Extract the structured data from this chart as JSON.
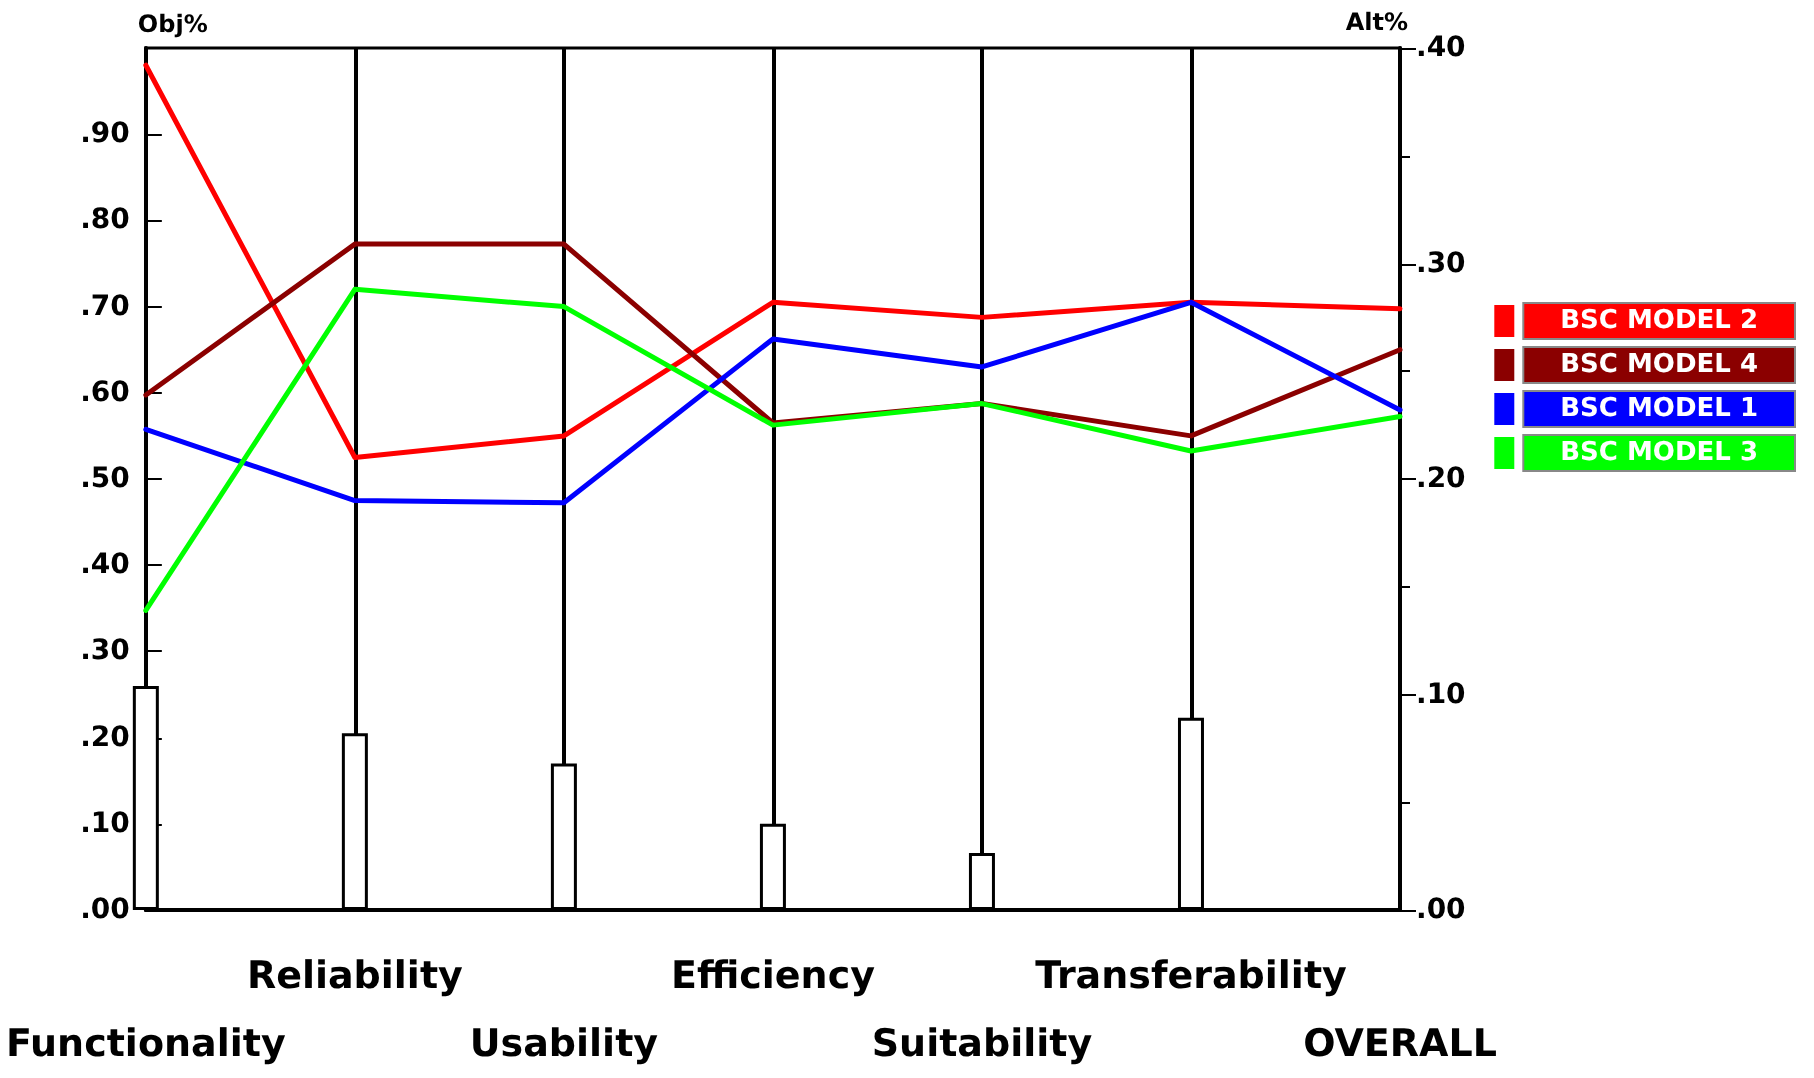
{
  "chart_data": {
    "type": "line",
    "ylabel": "Obj%",
    "y2label": "Alt%",
    "categories": [
      "Functionality",
      "Reliability",
      "Usability",
      "Efficiency",
      "Suitability",
      "Transferability",
      "OVERALL"
    ],
    "series": [
      {
        "type": "bar",
        "color": "#ffffff",
        "values": [
          0.26,
          0.205,
          0.17,
          0.1,
          0.066,
          0.223,
          null
        ]
      },
      {
        "name": "BSC MODEL 2",
        "color": "#ff0000",
        "axis": "y2",
        "values": [
          0.392,
          0.21,
          0.22,
          0.282,
          0.275,
          0.282,
          0.279
        ]
      },
      {
        "name": "BSC MODEL 4",
        "color": "#8b0000",
        "axis": "y2",
        "values": [
          0.239,
          0.309,
          0.309,
          0.226,
          0.235,
          0.22,
          0.26
        ]
      },
      {
        "name": "BSC MODEL 1",
        "color": "#0000ff",
        "axis": "y2",
        "values": [
          0.223,
          0.19,
          0.189,
          0.265,
          0.252,
          0.282,
          0.232
        ]
      },
      {
        "name": "BSC MODEL 3",
        "color": "#00ff00",
        "axis": "y2",
        "values": [
          0.139,
          0.288,
          0.28,
          0.225,
          0.235,
          0.213,
          0.229
        ]
      }
    ],
    "ylim": [
      0,
      1
    ],
    "yticks": [
      {
        "value": 0,
        "label": ".00"
      },
      {
        "value": 0.1,
        "label": ".10"
      },
      {
        "value": 0.2,
        "label": ".20"
      },
      {
        "value": 0.3,
        "label": ".30"
      },
      {
        "value": 0.4,
        "label": ".40"
      },
      {
        "value": 0.5,
        "label": ".50"
      },
      {
        "value": 0.6,
        "label": ".60"
      },
      {
        "value": 0.7,
        "label": ".70"
      },
      {
        "value": 0.8,
        "label": ".80"
      },
      {
        "value": 0.9,
        "label": ".90"
      }
    ],
    "y2lim": [
      0,
      0.4
    ],
    "y2ticks": [
      {
        "value": 0,
        "label": ".00"
      },
      {
        "value": 0.1,
        "label": ".10"
      },
      {
        "value": 0.2,
        "label": ".20"
      },
      {
        "value": 0.3,
        "label": ".30"
      },
      {
        "value": 0.4,
        "label": ".40"
      }
    ],
    "grid": "x",
    "legend": "right",
    "marker": "none",
    "line_style": "solid"
  }
}
